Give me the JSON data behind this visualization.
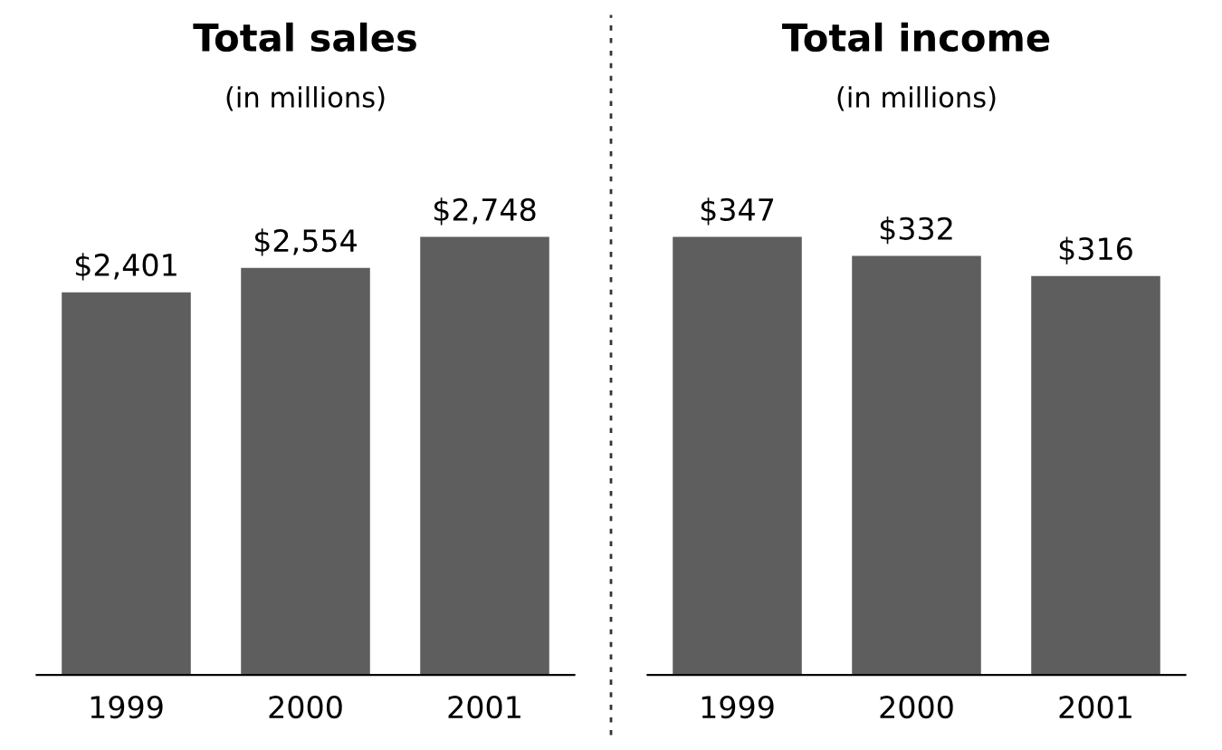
{
  "chart_data": [
    {
      "type": "bar",
      "title": "Total sales",
      "subtitle": "(in millions)",
      "categories": [
        "1999",
        "2000",
        "2001"
      ],
      "values": [
        2401,
        2554,
        2748
      ],
      "value_labels": [
        "$2,401",
        "$2,554",
        "$2,748"
      ],
      "color": "#5e5e5e"
    },
    {
      "type": "bar",
      "title": "Total income",
      "subtitle": "(in millions)",
      "categories": [
        "1999",
        "2000",
        "2001"
      ],
      "values": [
        347,
        332,
        316
      ],
      "value_labels": [
        "$347",
        "$332",
        "$316"
      ],
      "color": "#5e5e5e"
    }
  ]
}
